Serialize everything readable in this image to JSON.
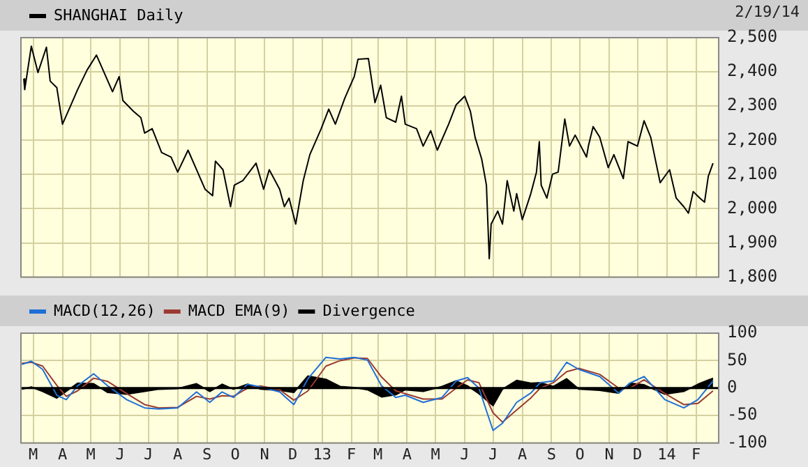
{
  "chart_data": [
    {
      "type": "line",
      "legend": "top left",
      "grid": true,
      "tick_labels": "y",
      "marker": "none",
      "annotations": [
        "2/19/14"
      ],
      "xlim": [
        "2012-02-17",
        "2014-02-25"
      ],
      "xticks": [
        {
          "value": "2012-03-01",
          "label": null
        },
        {
          "value": "2012-04-01",
          "label": null
        },
        {
          "value": "2012-05-01",
          "label": null
        },
        {
          "value": "2012-06-01",
          "label": null
        },
        {
          "value": "2012-07-01",
          "label": null
        },
        {
          "value": "2012-08-01",
          "label": null
        },
        {
          "value": "2012-09-01",
          "label": null
        },
        {
          "value": "2012-10-01",
          "label": null
        },
        {
          "value": "2012-11-01",
          "label": null
        },
        {
          "value": "2012-12-01",
          "label": null
        },
        {
          "value": "2013-01-01",
          "label": null
        },
        {
          "value": "2013-02-01",
          "label": null
        },
        {
          "value": "2013-03-01",
          "label": null
        },
        {
          "value": "2013-04-01",
          "label": null
        },
        {
          "value": "2013-05-01",
          "label": null
        },
        {
          "value": "2013-06-01",
          "label": null
        },
        {
          "value": "2013-07-01",
          "label": null
        },
        {
          "value": "2013-08-01",
          "label": null
        },
        {
          "value": "2013-09-01",
          "label": null
        },
        {
          "value": "2013-10-01",
          "label": null
        },
        {
          "value": "2013-11-01",
          "label": null
        },
        {
          "value": "2013-12-01",
          "label": null
        },
        {
          "value": "2014-01-01",
          "label": null
        },
        {
          "value": "2014-02-01",
          "label": null
        }
      ],
      "ylim": [
        1800,
        2500
      ],
      "yticks": [
        {
          "value": 1800,
          "label": "1,800"
        },
        {
          "value": 1900,
          "label": "1,900"
        },
        {
          "value": 2000,
          "label": "2,000"
        },
        {
          "value": 2100,
          "label": "2,100"
        },
        {
          "value": 2200,
          "label": "2,200"
        },
        {
          "value": 2300,
          "label": "2,300"
        },
        {
          "value": 2400,
          "label": "2,400"
        },
        {
          "value": 2500,
          "label": "2,500"
        }
      ],
      "series": [
        {
          "name": "SHANGHAI Daily",
          "color": "#000000",
          "x": [
            "2012-02-20",
            "2012-02-21",
            "2012-02-28",
            "2012-03-06",
            "2012-03-15",
            "2012-03-19",
            "2012-03-26",
            "2012-04-01",
            "2012-04-09",
            "2012-04-17",
            "2012-04-27",
            "2012-05-07",
            "2012-05-14",
            "2012-05-24",
            "2012-05-31",
            "2012-06-04",
            "2012-06-15",
            "2012-06-23",
            "2012-06-27",
            "2012-07-05",
            "2012-07-15",
            "2012-07-25",
            "2012-08-01",
            "2012-08-12",
            "2012-08-21",
            "2012-08-30",
            "2012-09-07",
            "2012-09-10",
            "2012-09-18",
            "2012-09-26",
            "2012-09-30",
            "2012-10-09",
            "2012-10-23",
            "2012-10-31",
            "2012-11-06",
            "2012-11-17",
            "2012-11-22",
            "2012-11-27",
            "2012-12-04",
            "2012-12-12",
            "2012-12-19",
            "2012-12-31",
            "2013-01-08",
            "2013-01-15",
            "2013-01-25",
            "2013-02-04",
            "2013-02-08",
            "2013-02-19",
            "2013-02-26",
            "2013-03-04",
            "2013-03-10",
            "2013-03-20",
            "2013-03-26",
            "2013-03-30",
            "2013-04-11",
            "2013-04-18",
            "2013-04-26",
            "2013-05-03",
            "2013-05-15",
            "2013-05-23",
            "2013-06-01",
            "2013-06-07",
            "2013-06-12",
            "2013-06-19",
            "2013-06-24",
            "2013-06-27",
            "2013-06-29",
            "2013-07-06",
            "2013-07-11",
            "2013-07-16",
            "2013-07-23",
            "2013-07-26",
            "2013-08-01",
            "2013-08-10",
            "2013-08-16",
            "2013-08-19",
            "2013-08-21",
            "2013-08-27",
            "2013-09-02",
            "2013-09-08",
            "2013-09-15",
            "2013-09-20",
            "2013-09-26",
            "2013-10-08",
            "2013-10-10",
            "2013-10-15",
            "2013-10-22",
            "2013-10-31",
            "2013-11-06",
            "2013-11-16",
            "2013-11-21",
            "2013-12-01",
            "2013-12-08",
            "2013-12-15",
            "2013-12-25",
            "2014-01-04",
            "2014-01-11",
            "2014-01-19",
            "2014-01-24",
            "2014-01-29",
            "2014-02-05",
            "2014-02-10",
            "2014-02-14",
            "2014-02-19"
          ],
          "values": [
            2380,
            2348,
            2475,
            2398,
            2472,
            2373,
            2354,
            2247,
            2297,
            2348,
            2405,
            2449,
            2405,
            2342,
            2386,
            2316,
            2285,
            2266,
            2221,
            2234,
            2164,
            2151,
            2107,
            2171,
            2114,
            2057,
            2038,
            2139,
            2114,
            2006,
            2069,
            2082,
            2133,
            2057,
            2114,
            2057,
            2006,
            2031,
            1955,
            2082,
            2158,
            2234,
            2291,
            2247,
            2323,
            2386,
            2437,
            2439,
            2310,
            2361,
            2266,
            2253,
            2329,
            2247,
            2234,
            2183,
            2228,
            2171,
            2247,
            2304,
            2329,
            2285,
            2209,
            2145,
            2069,
            1854,
            1955,
            1993,
            1955,
            2082,
            1993,
            2044,
            1968,
            2044,
            2107,
            2196,
            2069,
            2031,
            2101,
            2107,
            2262,
            2183,
            2215,
            2151,
            2183,
            2240,
            2209,
            2120,
            2158,
            2088,
            2196,
            2183,
            2257,
            2209,
            2076,
            2114,
            2031,
            2006,
            1987,
            2050,
            2031,
            2019,
            2095,
            2133
          ]
        }
      ]
    },
    {
      "type": "line",
      "legend": "top left",
      "grid": true,
      "marker": "none",
      "xlim": [
        "2012-02-17",
        "2014-02-25"
      ],
      "xticks": [
        {
          "value": "2012-03-01",
          "label": "M"
        },
        {
          "value": "2012-04-01",
          "label": "A"
        },
        {
          "value": "2012-05-01",
          "label": "M"
        },
        {
          "value": "2012-06-01",
          "label": "J"
        },
        {
          "value": "2012-07-01",
          "label": "J"
        },
        {
          "value": "2012-08-01",
          "label": "A"
        },
        {
          "value": "2012-09-01",
          "label": "S"
        },
        {
          "value": "2012-10-01",
          "label": "O"
        },
        {
          "value": "2012-11-01",
          "label": "N"
        },
        {
          "value": "2012-12-01",
          "label": "D"
        },
        {
          "value": "2013-01-01",
          "label": "13"
        },
        {
          "value": "2013-02-01",
          "label": "F"
        },
        {
          "value": "2013-03-01",
          "label": "M"
        },
        {
          "value": "2013-04-01",
          "label": "A"
        },
        {
          "value": "2013-05-01",
          "label": "M"
        },
        {
          "value": "2013-06-01",
          "label": "J"
        },
        {
          "value": "2013-07-01",
          "label": "J"
        },
        {
          "value": "2013-08-01",
          "label": "A"
        },
        {
          "value": "2013-09-01",
          "label": "S"
        },
        {
          "value": "2013-10-01",
          "label": "O"
        },
        {
          "value": "2013-11-01",
          "label": "N"
        },
        {
          "value": "2013-12-01",
          "label": "D"
        },
        {
          "value": "2014-01-01",
          "label": "14"
        },
        {
          "value": "2014-02-01",
          "label": "F"
        }
      ],
      "ylim": [
        -100,
        100
      ],
      "yticks": [
        -100,
        -50,
        0,
        50,
        100
      ],
      "ref_lines": [
        {
          "axis": "y",
          "value": 0,
          "color": "#000000"
        }
      ],
      "x": [
        "2012-02-18",
        "2012-02-28",
        "2012-03-11",
        "2012-03-26",
        "2012-04-05",
        "2012-04-17",
        "2012-05-04",
        "2012-05-19",
        "2012-06-08",
        "2012-06-27",
        "2012-07-12",
        "2012-08-01",
        "2012-08-21",
        "2012-09-04",
        "2012-09-17",
        "2012-09-29",
        "2012-10-14",
        "2012-10-28",
        "2012-11-17",
        "2012-12-02",
        "2012-12-17",
        "2013-01-05",
        "2013-01-20",
        "2013-02-04",
        "2013-02-18",
        "2013-03-05",
        "2013-03-20",
        "2013-03-30",
        "2013-04-18",
        "2013-05-08",
        "2013-05-23",
        "2013-06-04",
        "2013-06-16",
        "2013-07-01",
        "2013-07-11",
        "2013-07-26",
        "2013-08-10",
        "2013-08-20",
        "2013-09-03",
        "2013-09-17",
        "2013-09-30",
        "2013-10-22",
        "2013-11-11",
        "2013-11-23",
        "2013-12-08",
        "2013-12-30",
        "2014-01-19",
        "2014-02-03",
        "2014-02-19"
      ],
      "series": [
        {
          "name": "MACD(12,26)",
          "color": "#1f6fd6",
          "values": [
            43,
            49,
            34,
            -13,
            -21,
            4,
            26,
            4,
            -21,
            -36,
            -38,
            -36,
            -7,
            -26,
            -7,
            -17,
            7,
            2,
            -7,
            -30,
            17,
            56,
            53,
            56,
            51,
            4,
            -17,
            -13,
            -26,
            -17,
            13,
            19,
            0,
            -77,
            -64,
            -26,
            -9,
            10,
            13,
            47,
            34,
            21,
            -9,
            9,
            21,
            -21,
            -36,
            -21,
            13
          ]
        },
        {
          "name": "MACD EMA(9)",
          "color": "#9b3b32",
          "values": [
            45,
            47,
            40,
            5,
            -15,
            -5,
            18,
            12,
            -10,
            -30,
            -36,
            -35,
            -15,
            -20,
            -14,
            -15,
            0,
            4,
            -3,
            -22,
            -5,
            40,
            50,
            55,
            54,
            20,
            -5,
            -10,
            -20,
            -20,
            0,
            15,
            10,
            -45,
            -62,
            -40,
            -18,
            0,
            10,
            30,
            36,
            25,
            0,
            0,
            15,
            -10,
            -30,
            -28,
            -5
          ]
        },
        {
          "name": "Divergence",
          "type": "area",
          "color": "#000000",
          "values": [
            -2,
            2,
            -6,
            -18,
            -6,
            9,
            8,
            -8,
            -11,
            -6,
            -2,
            -1,
            8,
            -6,
            7,
            -2,
            7,
            -2,
            -4,
            -8,
            22,
            16,
            3,
            1,
            -3,
            -16,
            -12,
            -3,
            -6,
            3,
            13,
            4,
            -10,
            -32,
            -2,
            14,
            9,
            10,
            3,
            17,
            -2,
            -4,
            -9,
            9,
            6,
            -11,
            -6,
            7,
            18
          ]
        }
      ]
    }
  ]
}
